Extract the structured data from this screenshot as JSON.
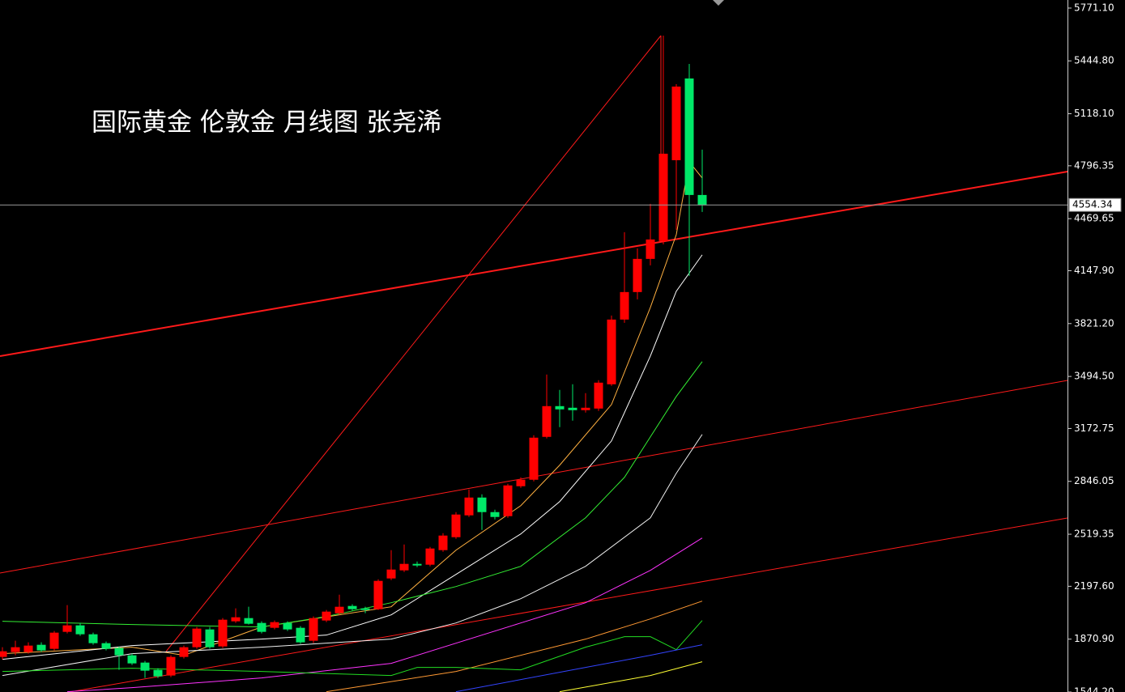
{
  "chart_data": {
    "type": "candlestick",
    "title": "国际黄金 伦敦金  月线图 张尧浠",
    "up_color": "#ff0000",
    "down_color": "#00e868",
    "open": [
      1761,
      1791,
      1791,
      1836,
      1811,
      1916,
      1956,
      1901,
      1846,
      1816,
      1771,
      1726,
      1681,
      1646,
      1761,
      1821,
      1931,
      1826,
      1981,
      2001,
      1971,
      1941,
      1971,
      1941,
      1861,
      1986,
      2031,
      2076,
      2061,
      2056,
      2246,
      2296,
      2336,
      2331,
      2421,
      2501,
      2636,
      2746,
      2656,
      2631,
      2816,
      2856,
      3121,
      3311,
      3301,
      3286,
      3296,
      3446,
      3846,
      4016,
      4221,
      4331,
      4831,
      5336,
      4616
    ],
    "high": [
      1821,
      1861,
      1851,
      1851,
      1921,
      2081,
      1971,
      1911,
      1856,
      1826,
      1781,
      1736,
      1691,
      1771,
      1831,
      1946,
      1946,
      2001,
      2061,
      2071,
      1981,
      1986,
      1981,
      1951,
      2011,
      2051,
      2146,
      2086,
      2071,
      2241,
      2421,
      2456,
      2351,
      2441,
      2526,
      2656,
      2796,
      2766,
      2671,
      2831,
      2871,
      3131,
      3506,
      3411,
      3446,
      3391,
      3471,
      3871,
      4386,
      4286,
      4561,
      5601,
      5301,
      5426,
      4896
    ],
    "low": [
      1746,
      1771,
      1781,
      1791,
      1801,
      1906,
      1891,
      1836,
      1801,
      1681,
      1711,
      1631,
      1631,
      1636,
      1751,
      1811,
      1811,
      1816,
      1971,
      1961,
      1906,
      1931,
      1921,
      1841,
      1846,
      1976,
      2021,
      2046,
      2031,
      2051,
      2236,
      2286,
      2316,
      2321,
      2411,
      2491,
      2626,
      2546,
      2611,
      2621,
      2806,
      2846,
      3111,
      3181,
      3221,
      3271,
      3281,
      3436,
      3826,
      3971,
      4181,
      4311,
      4401,
      4116,
      4511
    ],
    "close": [
      1796,
      1821,
      1831,
      1801,
      1911,
      1956,
      1901,
      1846,
      1811,
      1771,
      1721,
      1676,
      1641,
      1761,
      1821,
      1936,
      1821,
      1991,
      2006,
      1966,
      1916,
      1976,
      1931,
      1851,
      2001,
      2041,
      2071,
      2056,
      2051,
      2231,
      2301,
      2336,
      2326,
      2431,
      2511,
      2641,
      2746,
      2656,
      2626,
      2821,
      2856,
      3116,
      3311,
      3291,
      3286,
      3301,
      3456,
      3846,
      4016,
      4221,
      4341,
      4871,
      5286,
      4616,
      4554.34
    ],
    "lines": [
      {
        "color": "#ffb040",
        "x": [
          0,
          10,
          14,
          20,
          30,
          35,
          40,
          43,
          47,
          50,
          52,
          53,
          54
        ],
        "values": [
          1781,
          1821,
          1771,
          1946,
          2071,
          2421,
          2696,
          2946,
          3321,
          3921,
          4371,
          4821,
          4721
        ]
      },
      {
        "color": "#ffffff",
        "x": [
          0,
          10,
          20,
          25,
          30,
          35,
          40,
          43,
          47,
          50,
          52,
          54
        ],
        "values": [
          1746,
          1831,
          1871,
          1896,
          2021,
          2271,
          2521,
          2721,
          3096,
          3621,
          4021,
          4246
        ]
      },
      {
        "color": "#33ee33",
        "x": [
          0,
          10,
          20,
          25,
          30,
          35,
          40,
          45,
          48,
          50,
          52,
          54
        ],
        "values": [
          1981,
          1961,
          1946,
          2011,
          2096,
          2196,
          2321,
          2621,
          2871,
          3121,
          3371,
          3586
        ]
      },
      {
        "color": "#f0f0f0",
        "x": [
          0,
          10,
          20,
          30,
          35,
          40,
          45,
          50,
          52,
          54
        ],
        "values": [
          1646,
          1781,
          1821,
          1871,
          1971,
          2121,
          2321,
          2621,
          2896,
          3136
        ]
      },
      {
        "color": "#ff33ff",
        "x": [
          5,
          10,
          20,
          30,
          40,
          45,
          50,
          54
        ],
        "values": [
          1546,
          1571,
          1631,
          1721,
          1971,
          2096,
          2296,
          2496
        ]
      },
      {
        "color": "#ff9933",
        "x": [
          25,
          35,
          45,
          50,
          54
        ],
        "values": [
          1546,
          1671,
          1871,
          1996,
          2106
        ]
      },
      {
        "color": "#22dd22",
        "x": [
          0,
          10,
          20,
          30,
          32,
          35,
          40,
          45,
          48,
          50,
          52,
          54
        ],
        "values": [
          1671,
          1691,
          1671,
          1646,
          1696,
          1696,
          1681,
          1821,
          1886,
          1886,
          1806,
          1986
        ]
      },
      {
        "color": "#3344ff",
        "x": [
          35,
          45,
          50,
          54
        ],
        "values": [
          1546,
          1696,
          1771,
          1836
        ]
      },
      {
        "color": "#ffff33",
        "x": [
          43,
          50,
          54
        ],
        "values": [
          1546,
          1646,
          1731
        ]
      }
    ],
    "last_price": 4554.34,
    "ylim": [
      1544.2,
      5821
    ],
    "yticks": [
      {
        "value": 5771.1,
        "label": "5771.10"
      },
      {
        "value": 5444.8,
        "label": "5444.80"
      },
      {
        "value": 5118.1,
        "label": "5118.10"
      },
      4796.35,
      4469.65,
      {
        "value": 4147.9,
        "label": "4147.90"
      },
      {
        "value": 3821.2,
        "label": "3821.20"
      },
      {
        "value": 3494.5,
        "label": "3494.50"
      },
      3172.75,
      2846.05,
      2519.35,
      {
        "value": 2197.6,
        "label": "2197.60"
      },
      {
        "value": 1870.9,
        "label": "1870.90"
      },
      {
        "value": 1544.2,
        "label": "1544.20"
      }
    ]
  }
}
